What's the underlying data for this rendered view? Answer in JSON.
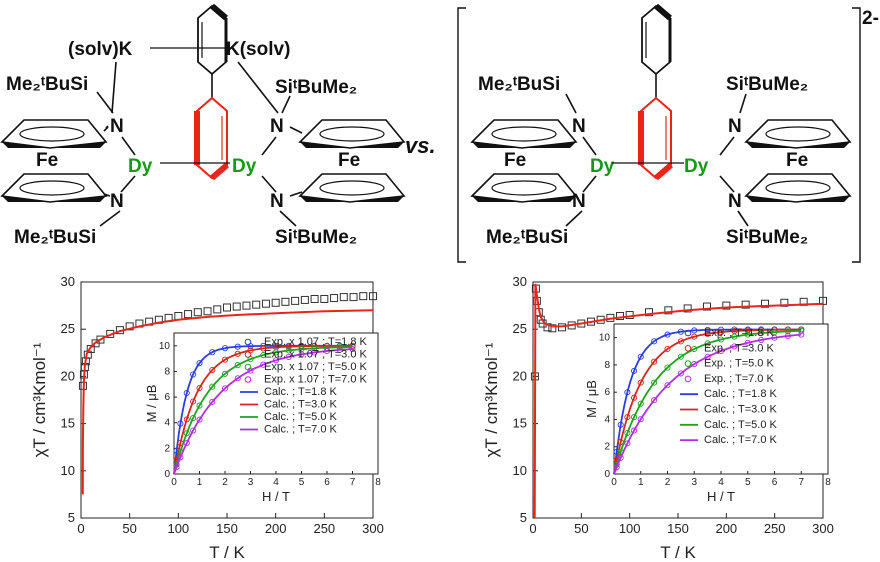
{
  "structures": {
    "vs_label": "vs.",
    "charge": "2-",
    "left": {
      "top_left_label": "(solv)K",
      "top_right_label": "K(solv)",
      "si_top_left": "Me₂ᵗBuSi",
      "si_top_right": "SiᵗBuMe₂",
      "si_bottom_left": "Me₂ᵗBuSi",
      "si_bottom_right": "SiᵗBuMe₂",
      "n": "N",
      "fe": "Fe",
      "dy": "Dy"
    },
    "right": {
      "si_top_left": "Me₂ᵗBuSi",
      "si_top_right": "SiᵗBuMe₂",
      "si_bottom_left": "Me₂ᵗBuSi",
      "si_bottom_right": "SiᵗBuMe₂",
      "n": "N",
      "fe": "Fe",
      "dy": "Dy"
    }
  },
  "colors": {
    "fit_line": "#e8251a",
    "exp_marker": "#333333",
    "dy": "#159a15",
    "ring_red": "#e8251a",
    "series": [
      "#2a3ee0",
      "#d4261c",
      "#1fa21f",
      "#b02ee0"
    ]
  },
  "chart_data": [
    {
      "type": "scatter",
      "panel": "left",
      "xlabel": "T / K",
      "ylabel": "χT / cm³Kmol⁻¹",
      "xlim": [
        0,
        300
      ],
      "ylim": [
        5,
        30
      ],
      "xticks": [
        "0",
        "50",
        "100",
        "150",
        "200",
        "250",
        "300"
      ],
      "yticks": [
        "5",
        "10",
        "15",
        "20",
        "25",
        "30"
      ],
      "series": [
        {
          "name": "Exp.",
          "style": "open-square",
          "x": [
            2,
            3,
            4,
            5,
            7,
            10,
            15,
            20,
            30,
            40,
            50,
            60,
            70,
            80,
            90,
            100,
            110,
            120,
            130,
            140,
            150,
            160,
            170,
            180,
            190,
            200,
            210,
            220,
            230,
            240,
            250,
            260,
            270,
            280,
            290,
            300
          ],
          "y": [
            19.0,
            20.2,
            21.0,
            21.6,
            22.3,
            22.9,
            23.5,
            23.9,
            24.5,
            24.9,
            25.3,
            25.6,
            25.8,
            26.0,
            26.2,
            26.4,
            26.6,
            26.8,
            26.9,
            27.1,
            27.3,
            27.4,
            27.5,
            27.6,
            27.7,
            27.8,
            27.9,
            28.0,
            28.1,
            28.2,
            28.2,
            28.3,
            28.4,
            28.4,
            28.5,
            28.5
          ]
        },
        {
          "name": "Calc.",
          "style": "line",
          "x": [
            1.8,
            2,
            2.5,
            3,
            4,
            6,
            10,
            15,
            25,
            40,
            60,
            80,
            100,
            130,
            160,
            200,
            250,
            300
          ],
          "y": [
            7.5,
            13.0,
            17.0,
            19.5,
            21.2,
            22.4,
            23.1,
            23.6,
            24.2,
            24.8,
            25.3,
            25.7,
            26.0,
            26.3,
            26.5,
            26.7,
            26.9,
            27.0
          ]
        }
      ],
      "inset": {
        "xlabel": "H / T",
        "ylabel": "M / μB",
        "xlim": [
          0,
          8
        ],
        "ylim": [
          0,
          11
        ],
        "xticks": [
          "0",
          "1",
          "2",
          "3",
          "4",
          "5",
          "6",
          "7",
          "8"
        ],
        "yticks": [
          "0",
          "2",
          "4",
          "6",
          "8",
          "10"
        ],
        "legend": [
          "Exp. x 1.07 ;  T=1.8 K",
          "Exp. x 1.07 ;  T=3.0 K",
          "Exp. x 1.07 ;  T=5.0 K",
          "Exp. x 1.07 ;  T=7.0 K",
          "Calc. ; T=1.8 K",
          "Calc. ; T=3.0 K",
          "Calc. ; T=5.0 K",
          "Calc. ; T=7.0 K"
        ],
        "temperatures": [
          1.8,
          3.0,
          5.0,
          7.0
        ],
        "msat": [
          10.0,
          10.0,
          9.95,
          9.95
        ],
        "b0": [
          0.5,
          0.9,
          1.3,
          1.8
        ],
        "fields": [
          0.1,
          0.25,
          0.5,
          0.75,
          1,
          1.5,
          2,
          2.5,
          3,
          3.5,
          4,
          4.5,
          5,
          5.5,
          6,
          6.5,
          7
        ]
      }
    },
    {
      "type": "scatter",
      "panel": "right",
      "xlabel": "T / K",
      "ylabel": "χT / cm³Kmol⁻¹",
      "xlim": [
        0,
        300
      ],
      "ylim": [
        5,
        30
      ],
      "xticks": [
        "0",
        "50",
        "100",
        "150",
        "200",
        "250",
        "300"
      ],
      "yticks": [
        "5",
        "10",
        "15",
        "20",
        "25",
        "30"
      ],
      "series": [
        {
          "name": "Exp.",
          "style": "open-square",
          "x": [
            2,
            3,
            4,
            6,
            8,
            10,
            15,
            20,
            30,
            40,
            50,
            60,
            70,
            80,
            90,
            100,
            120,
            140,
            160,
            180,
            200,
            220,
            240,
            260,
            280,
            300
          ],
          "y": [
            20.0,
            29.3,
            28.0,
            26.8,
            26.0,
            25.6,
            25.2,
            25.1,
            25.2,
            25.4,
            25.6,
            25.8,
            26.0,
            26.2,
            26.4,
            26.5,
            26.8,
            27.0,
            27.2,
            27.4,
            27.5,
            27.6,
            27.7,
            27.8,
            27.9,
            28.0
          ]
        },
        {
          "name": "Calc.",
          "style": "line",
          "x": [
            1.8,
            2.5,
            4,
            6,
            8,
            12,
            20,
            30,
            50,
            80,
            120,
            160,
            200,
            250,
            300
          ],
          "y": [
            5.0,
            29.8,
            28.6,
            27.2,
            26.3,
            25.6,
            25.3,
            25.3,
            25.6,
            26.1,
            26.6,
            27.0,
            27.3,
            27.5,
            27.7
          ]
        }
      ],
      "inset": {
        "xlabel": "H / T",
        "ylabel": "M / μB",
        "xlim": [
          0,
          8
        ],
        "ylim": [
          0,
          11
        ],
        "xticks": [
          "0",
          "1",
          "2",
          "3",
          "4",
          "5",
          "6",
          "7",
          "8"
        ],
        "yticks": [
          "0",
          "2",
          "4",
          "6",
          "8",
          "10"
        ],
        "legend": [
          "Exp. ;  T=1.8 K",
          "Exp. ;  T=3.0 K",
          "Exp. ;  T=5.0 K",
          "Exp. ;  T=7.0 K",
          "Calc. ;  T=1.8 K",
          "Calc. ;  T=3.0 K",
          "Calc. ;  T=5.0 K",
          "Calc. ;  T=7.0 K"
        ],
        "temperatures": [
          1.8,
          3.0,
          5.0,
          7.0
        ],
        "msat": [
          10.6,
          10.6,
          10.6,
          10.6
        ],
        "b0": [
          0.6,
          1.0,
          1.5,
          2.1
        ],
        "fields": [
          0.1,
          0.25,
          0.5,
          0.75,
          1,
          1.5,
          2,
          2.5,
          3,
          3.5,
          4,
          4.5,
          5,
          5.5,
          6,
          6.5,
          7
        ]
      }
    }
  ]
}
